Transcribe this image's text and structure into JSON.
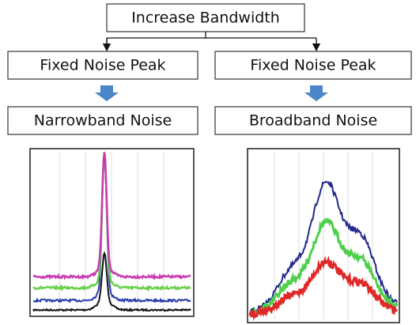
{
  "header": {
    "title": "Increase Bandwidth"
  },
  "branches": [
    {
      "condition": "Fixed Noise Peak",
      "result": "Narrowband Noise"
    },
    {
      "condition": "Fixed Noise Peak",
      "result": "Broadband Noise"
    }
  ]
}
